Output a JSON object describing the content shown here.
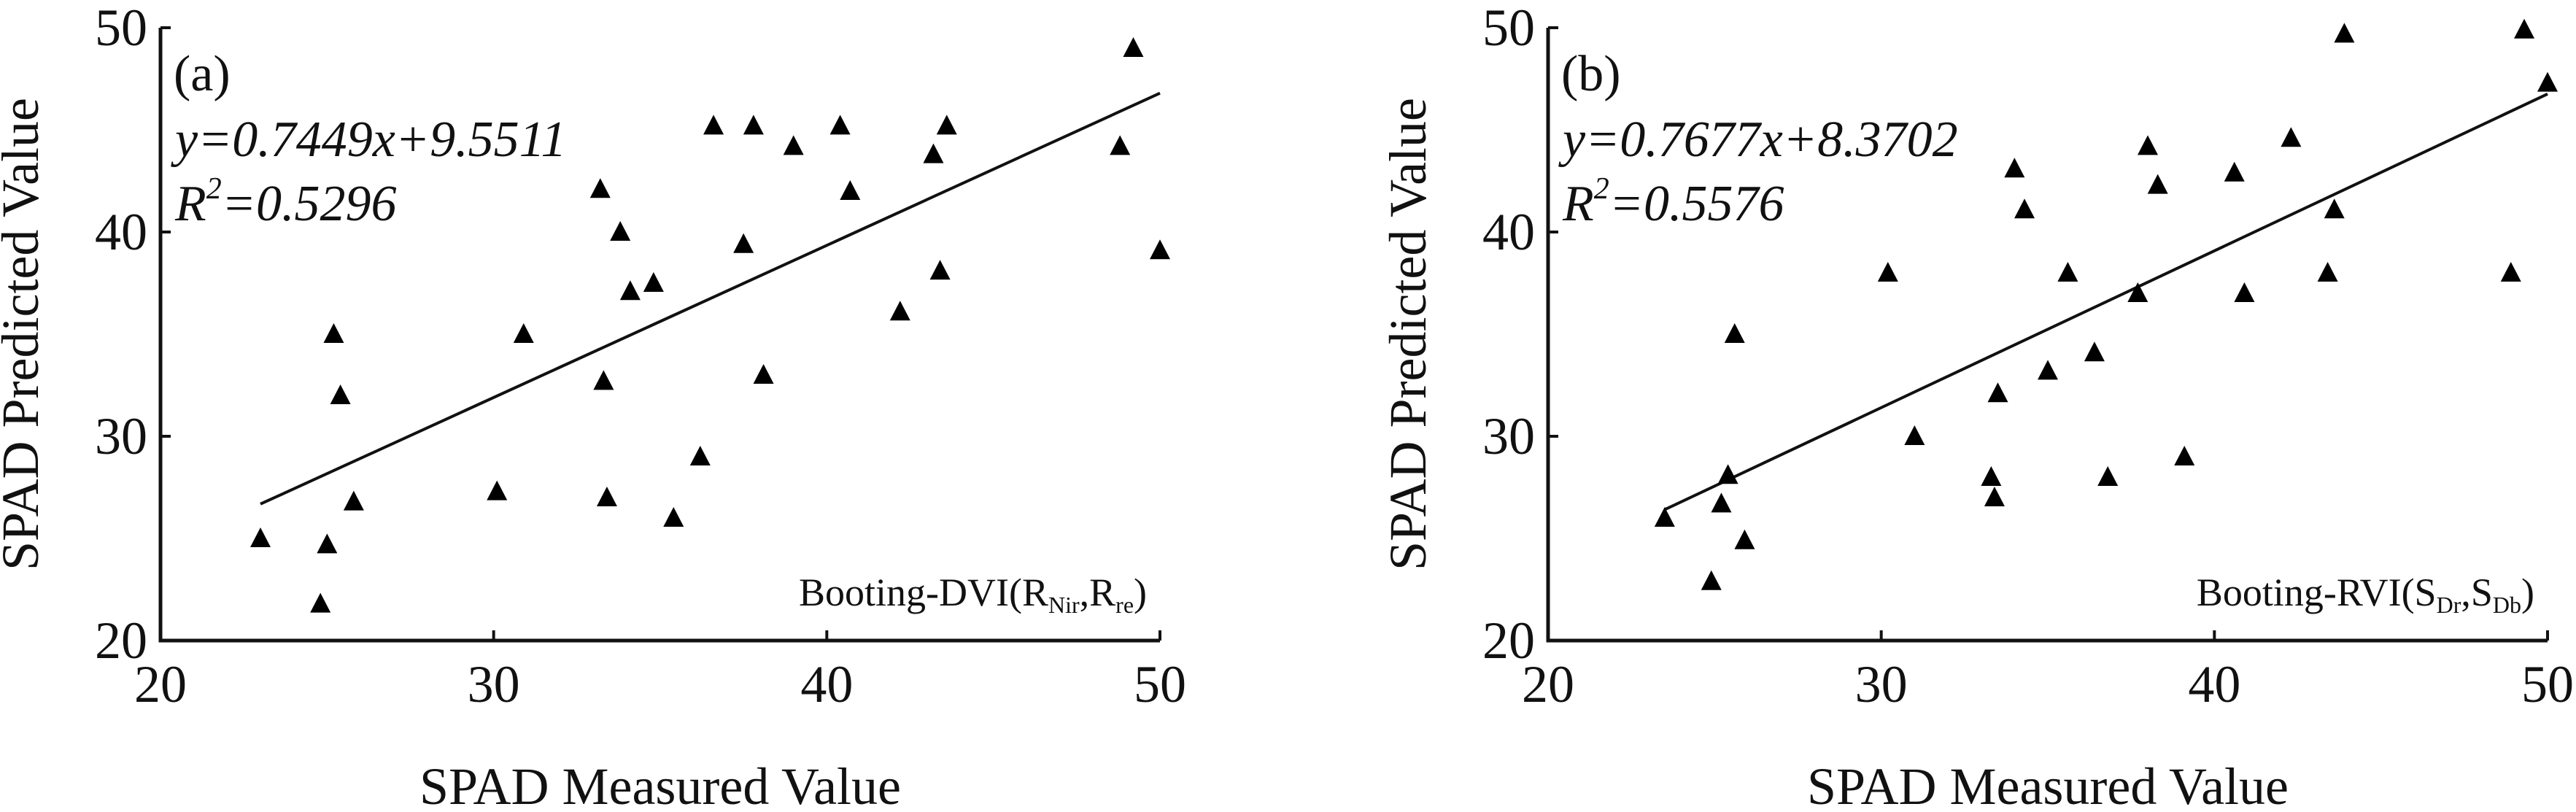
{
  "chart_data": [
    {
      "type": "scatter",
      "panel_label": "(a)",
      "equation": "y=0.7449x+9.5511",
      "r2": {
        "prefix": "R",
        "sup": "2",
        "value": "=0.5296"
      },
      "index_label": {
        "main": "Booting-DVI(R",
        "sub1": "Nir",
        "mid": ",R",
        "sub2": "re",
        "end": ")"
      },
      "xlabel": "SPAD Measured Value",
      "ylabel": "SPAD Predicted Value",
      "xlim": [
        20,
        50
      ],
      "ylim": [
        20,
        50
      ],
      "xticks": [
        20,
        30,
        40,
        50
      ],
      "yticks": [
        20,
        30,
        40,
        50
      ],
      "fit_line": {
        "slope": 0.7449,
        "intercept": 9.5511,
        "x_range": [
          23,
          50
        ]
      },
      "points": [
        {
          "x": 23.0,
          "y": 25.0
        },
        {
          "x": 24.8,
          "y": 21.8
        },
        {
          "x": 25.0,
          "y": 24.7
        },
        {
          "x": 25.2,
          "y": 35.0
        },
        {
          "x": 25.4,
          "y": 32.0
        },
        {
          "x": 25.8,
          "y": 26.8
        },
        {
          "x": 30.1,
          "y": 27.3
        },
        {
          "x": 30.9,
          "y": 35.0
        },
        {
          "x": 33.2,
          "y": 42.1
        },
        {
          "x": 33.3,
          "y": 32.7
        },
        {
          "x": 33.4,
          "y": 27.0
        },
        {
          "x": 33.8,
          "y": 40.0
        },
        {
          "x": 34.1,
          "y": 37.1
        },
        {
          "x": 34.8,
          "y": 37.5
        },
        {
          "x": 35.4,
          "y": 26.0
        },
        {
          "x": 36.2,
          "y": 29.0
        },
        {
          "x": 36.6,
          "y": 45.2
        },
        {
          "x": 37.5,
          "y": 39.4
        },
        {
          "x": 37.8,
          "y": 45.2
        },
        {
          "x": 38.1,
          "y": 33.0
        },
        {
          "x": 39.0,
          "y": 44.2
        },
        {
          "x": 40.4,
          "y": 45.2
        },
        {
          "x": 40.7,
          "y": 42.0
        },
        {
          "x": 42.2,
          "y": 36.1
        },
        {
          "x": 43.2,
          "y": 43.8
        },
        {
          "x": 43.4,
          "y": 38.1
        },
        {
          "x": 43.6,
          "y": 45.2
        },
        {
          "x": 48.8,
          "y": 44.2
        },
        {
          "x": 49.2,
          "y": 49.0
        },
        {
          "x": 50.0,
          "y": 39.1
        }
      ]
    },
    {
      "type": "scatter",
      "panel_label": "(b)",
      "equation": "y=0.7677x+8.3702",
      "r2": {
        "prefix": "R",
        "sup": "2",
        "value": "=0.5576"
      },
      "index_label": {
        "main": "Booting-RVI(S",
        "sub1": "Dr",
        "mid": ",S",
        "sub2": "Db",
        "end": ")"
      },
      "xlabel": "SPAD Measured Value",
      "ylabel": "SPAD Predicted Value",
      "xlim": [
        20,
        50
      ],
      "ylim": [
        20,
        50
      ],
      "xticks": [
        20,
        30,
        40,
        50
      ],
      "yticks": [
        20,
        30,
        40,
        50
      ],
      "fit_line": {
        "slope": 0.7677,
        "intercept": 8.3702,
        "x_range": [
          23.5,
          50
        ]
      },
      "points": [
        {
          "x": 23.5,
          "y": 26.0
        },
        {
          "x": 24.9,
          "y": 22.9
        },
        {
          "x": 25.2,
          "y": 26.7
        },
        {
          "x": 25.4,
          "y": 28.1
        },
        {
          "x": 25.6,
          "y": 35.0
        },
        {
          "x": 25.9,
          "y": 24.9
        },
        {
          "x": 30.2,
          "y": 38.0
        },
        {
          "x": 31.0,
          "y": 30.0
        },
        {
          "x": 33.3,
          "y": 28.0
        },
        {
          "x": 33.4,
          "y": 27.0
        },
        {
          "x": 33.5,
          "y": 32.1
        },
        {
          "x": 34.0,
          "y": 43.1
        },
        {
          "x": 34.3,
          "y": 41.1
        },
        {
          "x": 35.0,
          "y": 33.2
        },
        {
          "x": 35.6,
          "y": 38.0
        },
        {
          "x": 36.4,
          "y": 34.1
        },
        {
          "x": 36.8,
          "y": 28.0
        },
        {
          "x": 37.7,
          "y": 37.0
        },
        {
          "x": 38.0,
          "y": 44.2
        },
        {
          "x": 38.3,
          "y": 42.3
        },
        {
          "x": 39.1,
          "y": 29.0
        },
        {
          "x": 40.6,
          "y": 42.9
        },
        {
          "x": 40.9,
          "y": 37.0
        },
        {
          "x": 42.3,
          "y": 44.6
        },
        {
          "x": 43.4,
          "y": 38.0
        },
        {
          "x": 43.6,
          "y": 41.1
        },
        {
          "x": 43.9,
          "y": 49.7
        },
        {
          "x": 48.9,
          "y": 38.0
        },
        {
          "x": 49.3,
          "y": 49.9
        },
        {
          "x": 50.0,
          "y": 47.3
        }
      ]
    }
  ]
}
